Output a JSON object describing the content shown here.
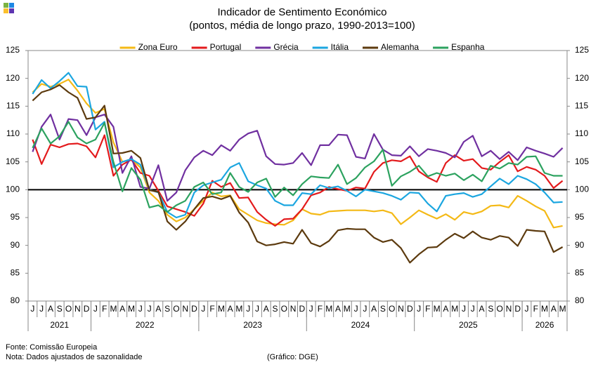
{
  "chart_data": {
    "type": "line",
    "title": "Indicador de Sentimento Económico",
    "subtitle": "(pontos, média de longo prazo, 1990-2013=100)",
    "categories": [
      "J",
      "J",
      "A",
      "S",
      "O",
      "N",
      "D",
      "J",
      "F",
      "M",
      "A",
      "M",
      "J",
      "J",
      "A",
      "S",
      "O",
      "N",
      "D",
      "J",
      "F",
      "M",
      "A",
      "M",
      "J",
      "J",
      "A",
      "S",
      "O",
      "N",
      "D",
      "J",
      "F",
      "M",
      "A",
      "M",
      "J",
      "J",
      "A",
      "S",
      "O",
      "N",
      "D",
      "J",
      "F",
      "M",
      "A",
      "M",
      "J",
      "J",
      "A",
      "S",
      "O",
      "N",
      "D",
      "J",
      "F",
      "M",
      "A",
      "M"
    ],
    "x_groups": [
      {
        "label": "2021",
        "span": 7
      },
      {
        "label": "2022",
        "span": 12
      },
      {
        "label": "2023",
        "span": 12
      },
      {
        "label": "2024",
        "span": 12
      },
      {
        "label": "2025",
        "span": 12
      },
      {
        "label": "2026",
        "span": 5
      }
    ],
    "series": [
      {
        "name": "Zona Euro",
        "color": "#f4b916",
        "values": [
          117.5,
          119,
          118.5,
          119,
          119.8,
          117.8,
          115.5,
          113.8,
          114.5,
          108.5,
          105,
          105.5,
          104,
          99.5,
          98,
          95.5,
          94.3,
          95,
          96.5,
          98,
          99.5,
          98.8,
          99,
          96.5,
          95.5,
          94.5,
          94,
          93.8,
          93.7,
          94.5,
          96.5,
          95.7,
          95.5,
          96.1,
          96.2,
          96.3,
          96.3,
          96.3,
          96.1,
          96.3,
          95.8,
          93.8,
          95,
          96.3,
          95.5,
          94.8,
          95.6,
          94.6,
          96,
          95.6,
          96.1,
          97.1,
          97.2,
          96.8,
          98.9,
          98,
          97,
          96.2,
          93.2,
          93.5
        ]
      },
      {
        "name": "Portugal",
        "color": "#e31a1c",
        "values": [
          109,
          104.6,
          108.1,
          107.6,
          108.2,
          108.3,
          107.8,
          105.8,
          109.8,
          102.5,
          104.5,
          105.4,
          103,
          102.5,
          99.8,
          97,
          96.5,
          96,
          95.3,
          97.5,
          101.6,
          100.5,
          101.2,
          98.5,
          98.6,
          96,
          94.6,
          93.5,
          94.7,
          94.8,
          96.5,
          99,
          99.5,
          100.5,
          100.1,
          99.8,
          100.4,
          100.2,
          103.2,
          104.8,
          105.3,
          105.1,
          106,
          103.3,
          102.2,
          101.4,
          104.8,
          106.2,
          105.2,
          105.5,
          103.9,
          103.6,
          105,
          106.2,
          103.3,
          104.1,
          103.6,
          102.5,
          100.3,
          101.6
        ]
      },
      {
        "name": "Grécia",
        "color": "#7030a0",
        "values": [
          106.8,
          111.3,
          113.5,
          109,
          112.7,
          112.5,
          109.8,
          113,
          113.5,
          111.3,
          103,
          106,
          100.5,
          100.2,
          104.4,
          98,
          99.5,
          103.5,
          105.8,
          107,
          106.2,
          108,
          107,
          109,
          110.1,
          110.6,
          106,
          104.6,
          104.5,
          104.8,
          106.6,
          104.4,
          108,
          108,
          109.9,
          109.8,
          105.9,
          105.6,
          110,
          107.2,
          106.2,
          106.1,
          107.8,
          106,
          107.3,
          107,
          106.6,
          105.8,
          108.6,
          109.7,
          106,
          107,
          105.5,
          106.8,
          105.3,
          107.6,
          107,
          106.5,
          105.9,
          107.5
        ]
      },
      {
        "name": "Itália",
        "color": "#1ba6e0",
        "values": [
          117.2,
          119.7,
          118.2,
          119.5,
          121,
          118.6,
          118.5,
          110.8,
          112.2,
          104,
          105,
          105.5,
          104.5,
          100,
          99.5,
          96,
          95,
          95.5,
          99.5,
          100.8,
          101.3,
          101.8,
          104,
          104.8,
          101.5,
          100.8,
          100.2,
          98,
          97.2,
          97.2,
          99.4,
          99.2,
          100.8,
          100.3,
          100.6,
          99.8,
          98.8,
          100,
          99.7,
          99.4,
          98.9,
          98.2,
          99.5,
          99.4,
          97.5,
          96.1,
          98.9,
          99.2,
          99.4,
          98.7,
          99.2,
          100.6,
          102,
          101,
          102.5,
          101.9,
          101,
          99.5,
          97.7,
          97.8
        ]
      },
      {
        "name": "Alemanha",
        "color": "#5c3a0e",
        "values": [
          116,
          117.5,
          118,
          118.8,
          117.5,
          116.5,
          112.7,
          113,
          115.1,
          106.5,
          106.6,
          107,
          105.7,
          99.9,
          99.6,
          94.3,
          92.8,
          94.3,
          96.5,
          98.5,
          98.8,
          98.3,
          98.9,
          95.9,
          94.1,
          90.7,
          90,
          90.2,
          90.6,
          90.3,
          92.8,
          90.4,
          89.8,
          90.8,
          92.7,
          93,
          92.9,
          92.9,
          91.4,
          90.6,
          91,
          89.5,
          86.9,
          88.4,
          89.6,
          89.7,
          91,
          92.1,
          91.3,
          92.5,
          91.4,
          91,
          91.7,
          91.4,
          89.9,
          92.8,
          92.6,
          92.5,
          88.8,
          89.7
        ]
      },
      {
        "name": "Espanha",
        "color": "#2ca25f",
        "values": [
          107.5,
          111,
          108.3,
          109.6,
          112.2,
          109.4,
          108.3,
          109,
          112,
          105,
          99.7,
          103.9,
          101.8,
          96.8,
          97.2,
          96,
          97.2,
          98,
          100.5,
          101.3,
          99.2,
          99.5,
          103,
          100.5,
          99.6,
          101.3,
          102,
          98.7,
          100.4,
          99,
          101,
          102.4,
          102.2,
          102.1,
          104.5,
          101,
          102.1,
          104,
          105.1,
          107.2,
          100.7,
          102.4,
          103.2,
          104.3,
          102.4,
          103,
          102.5,
          102.9,
          101.7,
          102.7,
          101.5,
          104.3,
          103.8,
          104.8,
          104.5,
          105.9,
          106,
          103,
          102.5,
          102.5
        ]
      }
    ],
    "ylim": [
      80,
      125
    ],
    "yticks": [
      80,
      85,
      90,
      95,
      100,
      105,
      110,
      115,
      120,
      125
    ],
    "y2lim": [
      80,
      125
    ],
    "y2ticks": [
      80,
      85,
      90,
      95,
      100,
      105,
      110,
      115,
      120,
      125
    ],
    "reference_line": 100,
    "grid": false,
    "legend": "top",
    "source": "Fonte: Comissão Europeia",
    "note": "Nota: Dados ajustados de sazonalidade",
    "credit": "(Gráfico: DGE)"
  }
}
